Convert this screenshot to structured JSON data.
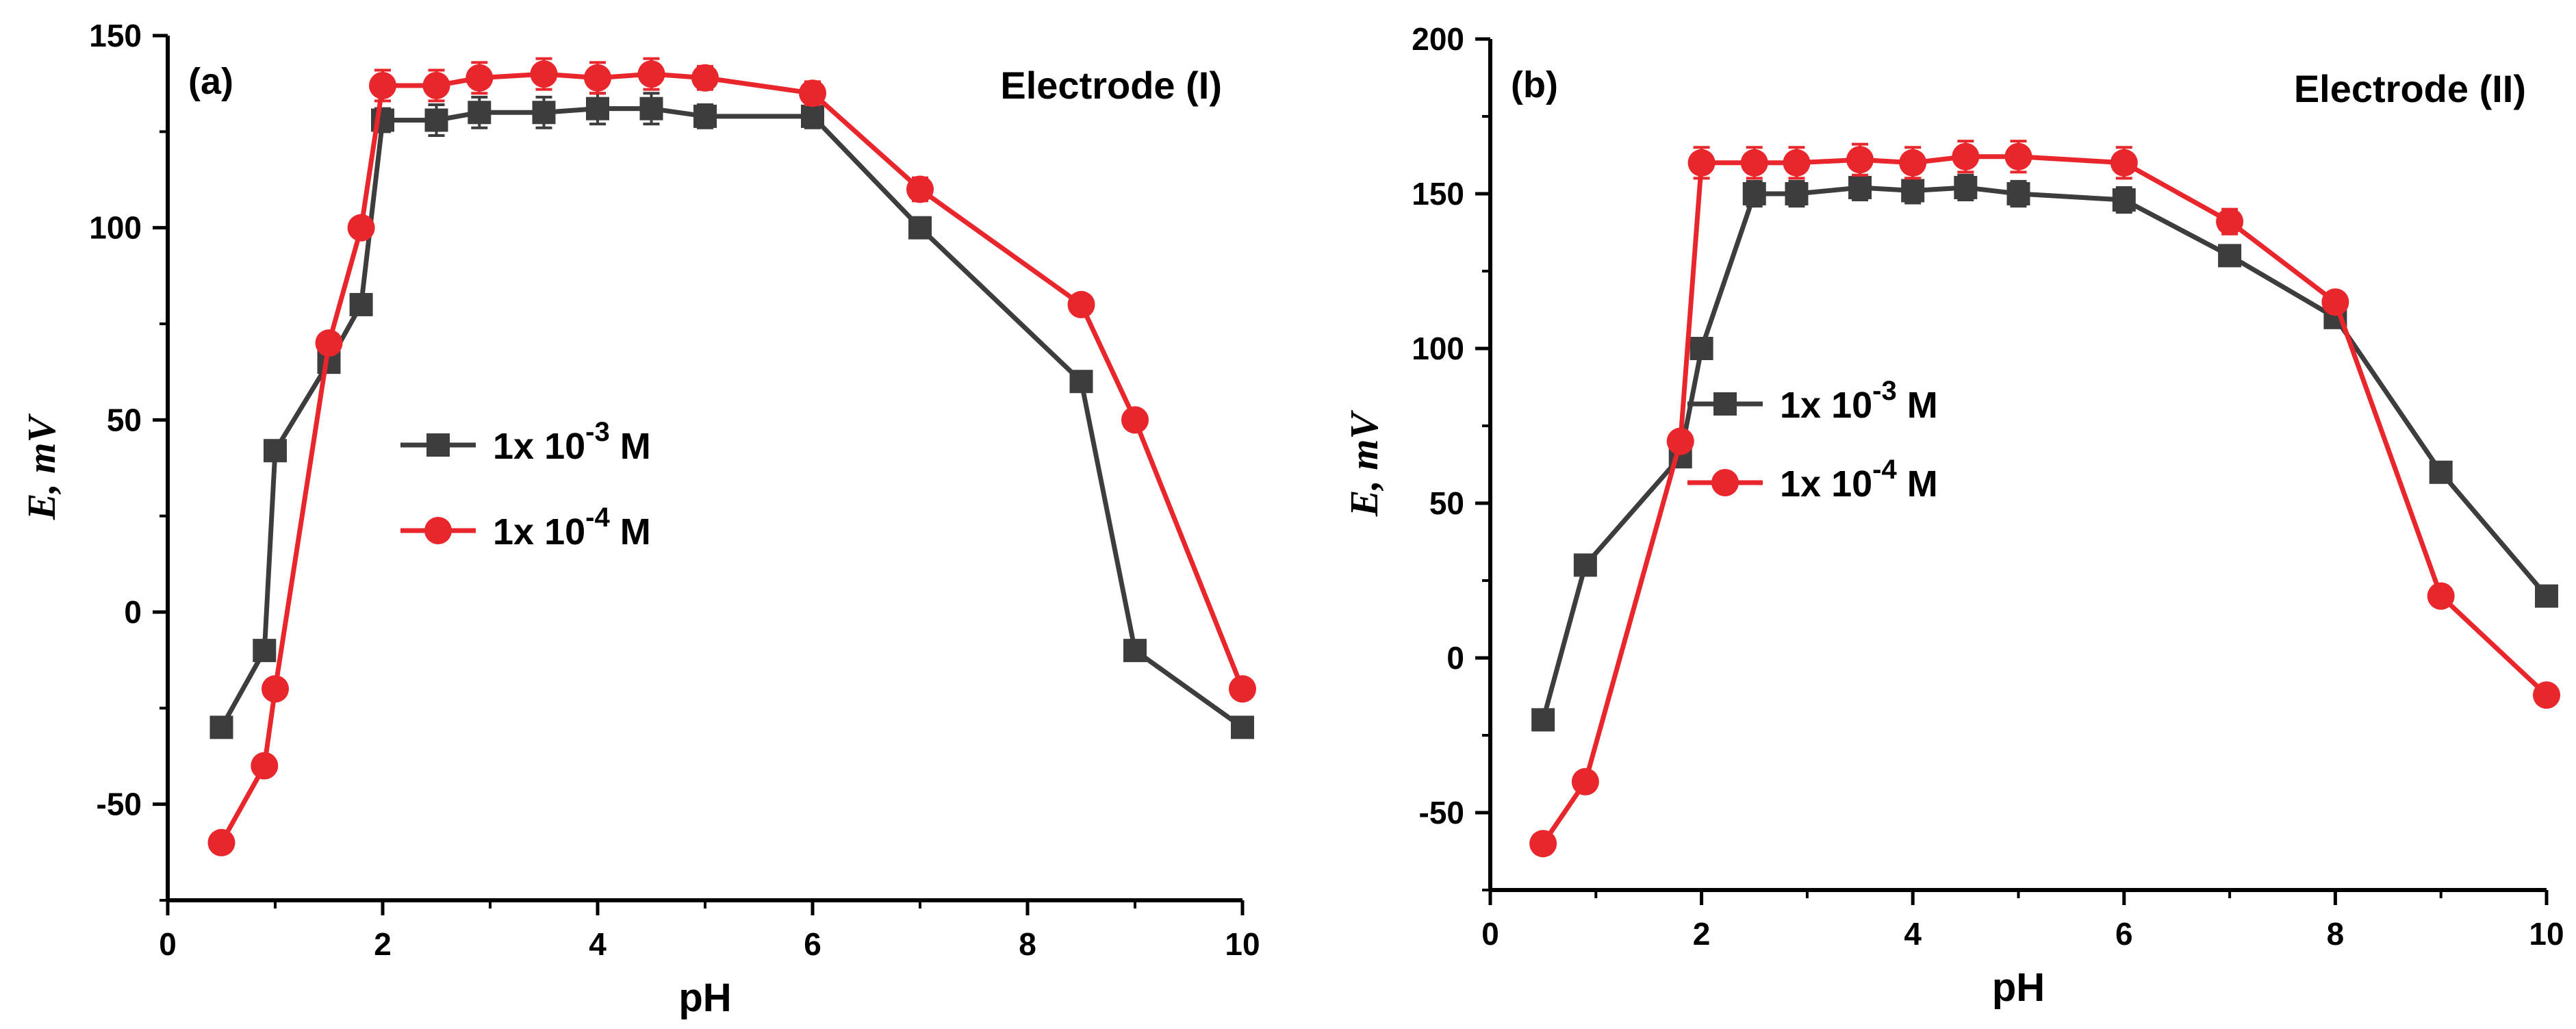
{
  "chart_data": [
    {
      "type": "line",
      "panel_label": "(a)",
      "annotation": "Electrode (I)",
      "xlabel": "pH",
      "ylabel": "E, mV",
      "xlim": [
        0,
        10
      ],
      "ylim": [
        -75,
        150
      ],
      "xticks": [
        0,
        2,
        4,
        6,
        8,
        10
      ],
      "yticks": [
        -50,
        0,
        50,
        100,
        150
      ],
      "legend_position": "center-left",
      "series": [
        {
          "name": "1x 10-3 M",
          "label_base": "1x 10",
          "label_exp": "-3",
          "label_unit": "M",
          "color": "#3d3d3d",
          "marker": "square",
          "x": [
            0.5,
            0.9,
            1.0,
            1.5,
            1.8,
            2.0,
            2.5,
            2.9,
            3.5,
            4.0,
            4.5,
            5.0,
            6.0,
            7.0,
            8.5,
            9.0,
            10.0
          ],
          "y": [
            -30,
            -10,
            42,
            65,
            80,
            128,
            128,
            130,
            130,
            131,
            131,
            129,
            129,
            100,
            60,
            -10,
            -30
          ],
          "err": [
            0,
            0,
            0,
            0,
            0,
            3,
            4,
            4,
            4,
            4,
            4,
            3,
            3,
            0,
            0,
            0,
            0
          ]
        },
        {
          "name": "1x 10-4 M",
          "label_base": "1x 10",
          "label_exp": "-4",
          "label_unit": "M",
          "color": "#e8262b",
          "marker": "circle",
          "x": [
            0.5,
            0.9,
            1.0,
            1.5,
            1.8,
            2.0,
            2.5,
            2.9,
            3.5,
            4.0,
            4.5,
            5.0,
            6.0,
            7.0,
            8.5,
            9.0,
            10.0
          ],
          "y": [
            -60,
            -40,
            -20,
            70,
            100,
            137,
            137,
            139,
            140,
            139,
            140,
            139,
            135,
            110,
            80,
            50,
            -20
          ],
          "err": [
            0,
            0,
            0,
            0,
            0,
            4,
            4,
            4,
            4,
            4,
            4,
            3,
            3,
            3,
            0,
            0,
            0
          ]
        }
      ]
    },
    {
      "type": "line",
      "panel_label": "(b)",
      "annotation": "Electrode (II)",
      "xlabel": "pH",
      "ylabel": "E, mV",
      "xlim": [
        0,
        10
      ],
      "ylim": [
        -75,
        200
      ],
      "xticks": [
        0,
        2,
        4,
        6,
        8,
        10
      ],
      "yticks": [
        -50,
        0,
        50,
        100,
        150,
        200
      ],
      "legend_position": "center-left",
      "series": [
        {
          "name": "1x 10-3 M",
          "label_base": "1x 10",
          "label_exp": "-3",
          "label_unit": "M",
          "color": "#3d3d3d",
          "marker": "square",
          "x": [
            0.5,
            0.9,
            1.8,
            2.0,
            2.5,
            2.9,
            3.5,
            4.0,
            4.5,
            5.0,
            6.0,
            7.0,
            8.0,
            9.0,
            10.0
          ],
          "y": [
            -20,
            30,
            65,
            100,
            150,
            150,
            152,
            151,
            152,
            150,
            148,
            130,
            110,
            60,
            20
          ],
          "err": [
            0,
            0,
            0,
            0,
            4,
            4,
            4,
            4,
            4,
            4,
            4,
            3,
            3,
            0,
            0
          ]
        },
        {
          "name": "1x 10-4 M",
          "label_base": "1x 10",
          "label_exp": "-4",
          "label_unit": "M",
          "color": "#e8262b",
          "marker": "circle",
          "x": [
            0.5,
            0.9,
            1.8,
            2.0,
            2.5,
            2.9,
            3.5,
            4.0,
            4.5,
            5.0,
            6.0,
            7.0,
            8.0,
            9.0,
            10.0
          ],
          "y": [
            -60,
            -40,
            70,
            160,
            160,
            160,
            161,
            160,
            162,
            162,
            160,
            141,
            115,
            20,
            -12
          ],
          "err": [
            0,
            0,
            0,
            5,
            5,
            5,
            5,
            5,
            5,
            5,
            5,
            4,
            3,
            0,
            0
          ]
        }
      ]
    }
  ]
}
